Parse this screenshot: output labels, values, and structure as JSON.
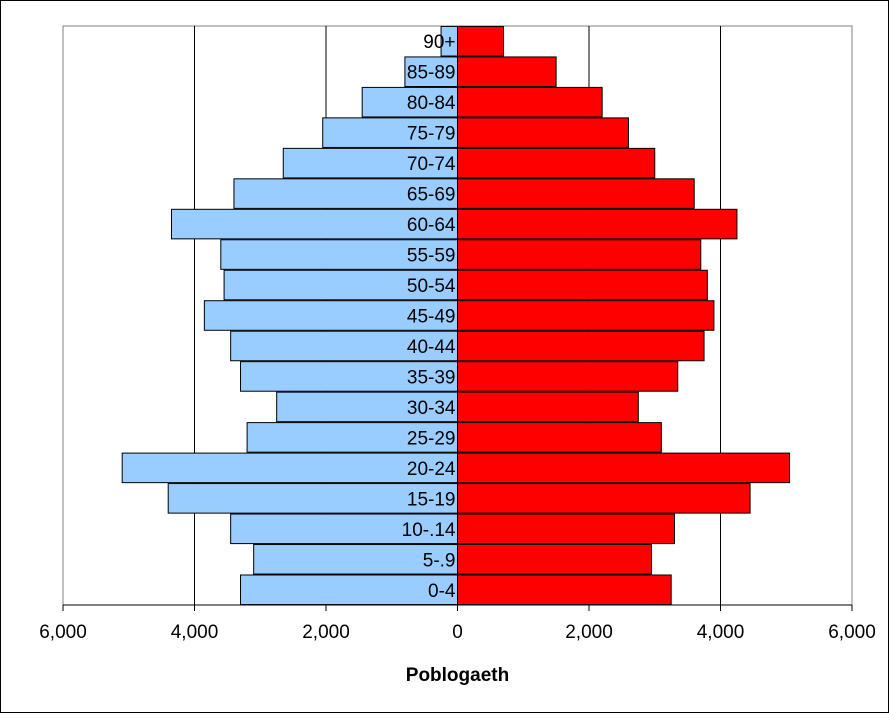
{
  "chart_data": {
    "type": "bar",
    "orientation": "horizontal",
    "layout": "population-pyramid",
    "xlabel": "Poblogaeth",
    "ylabel": "",
    "title": "",
    "xlim": [
      -6000,
      6000
    ],
    "xticks": [
      -6000,
      -4000,
      -2000,
      0,
      2000,
      4000,
      6000
    ],
    "xtick_labels": [
      "6,000",
      "4,000",
      "2,000",
      "0",
      "2,000",
      "4,000",
      "6,000"
    ],
    "grid": "vertical",
    "categories": [
      "0-4",
      "5-.9",
      "10-.14",
      "15-19",
      "20-24",
      "25-29",
      "30-34",
      "35-39",
      "40-44",
      "45-49",
      "50-54",
      "55-59",
      "60-64",
      "65-69",
      "70-74",
      "75-79",
      "80-84",
      "85-89",
      "90+"
    ],
    "series": [
      {
        "side": "left",
        "color": "#99CCFF",
        "values": [
          3300,
          3100,
          3450,
          4400,
          5100,
          3200,
          2750,
          3300,
          3450,
          3850,
          3550,
          3600,
          4350,
          3400,
          2650,
          2050,
          1450,
          800,
          250
        ]
      },
      {
        "side": "right",
        "color": "#FF0000",
        "values": [
          3250,
          2950,
          3300,
          4450,
          5050,
          3100,
          2750,
          3350,
          3750,
          3900,
          3800,
          3700,
          4250,
          3600,
          3000,
          2600,
          2200,
          1500,
          700
        ]
      }
    ]
  }
}
